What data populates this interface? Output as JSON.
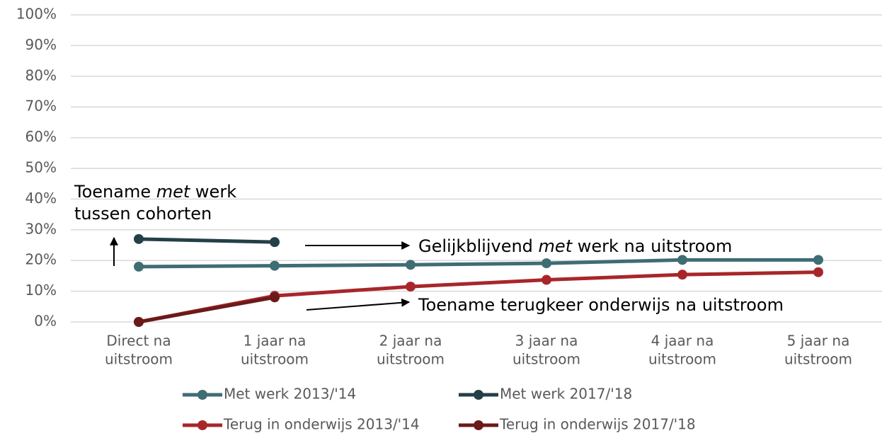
{
  "chart_data": {
    "type": "line",
    "categories": [
      [
        "Direct na",
        "uitstroom"
      ],
      [
        "1 jaar na",
        "uitstroom"
      ],
      [
        "2 jaar na",
        "uitstroom"
      ],
      [
        "3 jaar na",
        "uitstroom"
      ],
      [
        "4 jaar na",
        "uitstroom"
      ],
      [
        "5 jaar na",
        "uitstroom"
      ]
    ],
    "series": [
      {
        "name": "Met werk 2013/'14",
        "color": "#3e6d74",
        "values": [
          18,
          18.3,
          18.6,
          19.1,
          20.2,
          20.2
        ]
      },
      {
        "name": "Met werk 2017/'18",
        "color": "#243f48",
        "values": [
          27,
          26,
          null,
          null,
          null,
          null
        ]
      },
      {
        "name": "Terug in onderwijs 2013/'14",
        "color": "#a8262a",
        "values": [
          0,
          8.5,
          11.5,
          13.7,
          15.4,
          16.2
        ]
      },
      {
        "name": "Terug in onderwijs 2017/'18",
        "color": "#6a1a1b",
        "values": [
          0,
          8,
          null,
          null,
          null,
          null
        ]
      }
    ],
    "ylim": [
      0,
      100
    ],
    "yticks": [
      {
        "value": 0,
        "label": "0%"
      },
      {
        "value": 10,
        "label": "10%"
      },
      {
        "value": 20,
        "label": "20%"
      },
      {
        "value": 30,
        "label": "30%"
      },
      {
        "value": 40,
        "label": "40%"
      },
      {
        "value": 50,
        "label": "50%"
      },
      {
        "value": 60,
        "label": "60%"
      },
      {
        "value": 70,
        "label": "70%"
      },
      {
        "value": 80,
        "label": "80%"
      },
      {
        "value": 90,
        "label": "90%"
      },
      {
        "value": 100,
        "label": "100%"
      }
    ],
    "grid": true,
    "legend": "bottom",
    "annotations": [
      [
        "Toename ",
        "met",
        " werk"
      ],
      [
        "tussen cohorten"
      ],
      [
        "Gelijkblijvend ",
        "met",
        " werk na uitstroom"
      ],
      [
        "Toename terugkeer onderwijs na uitstroom"
      ]
    ]
  }
}
